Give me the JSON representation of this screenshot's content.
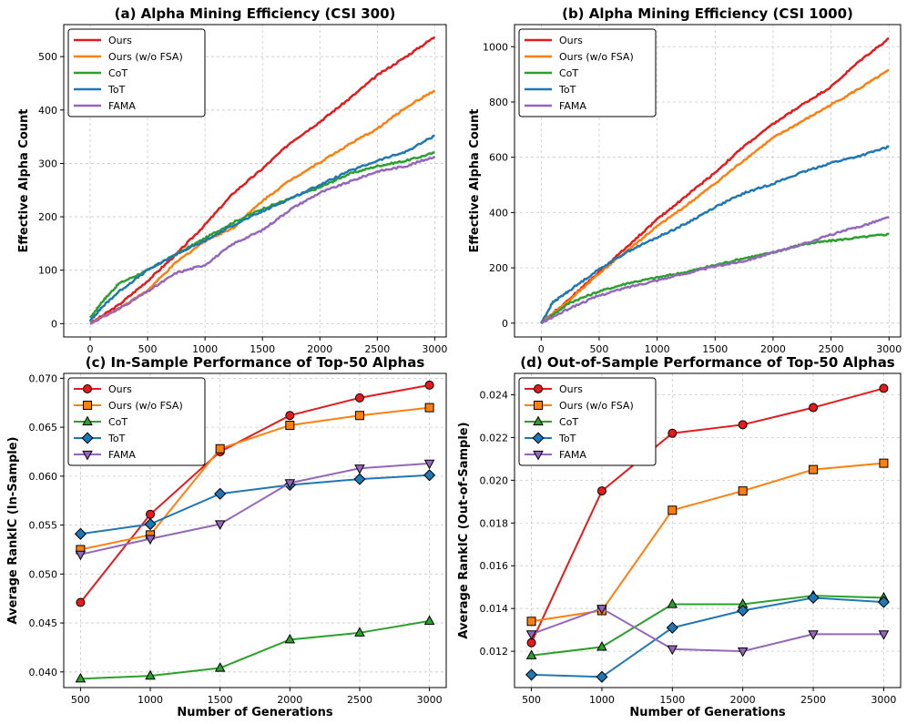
{
  "chart_data": [
    {
      "type": "line",
      "title": "(a) Alpha Mining Efficiency (CSI 300)",
      "xlabel": "",
      "ylabel": "Effective Alpha Count",
      "xlim": [
        -230,
        3100
      ],
      "ylim": [
        -25,
        560
      ],
      "xticks": [
        0,
        500,
        1000,
        1500,
        2000,
        2500,
        3000
      ],
      "yticks": [
        0,
        100,
        200,
        300,
        400,
        500
      ],
      "tick_labels_x": [
        "0",
        "500",
        "1000",
        "1500",
        "2000",
        "2500",
        "3000"
      ],
      "tick_labels_y": [
        "0",
        "100",
        "200",
        "300",
        "400",
        "500"
      ],
      "grid": true,
      "legend": "top-left",
      "series": [
        {
          "name": "Ours",
          "color": "#e41a1c",
          "marker": "none",
          "x": [
            0,
            250,
            500,
            750,
            1000,
            1250,
            1500,
            1750,
            2000,
            2250,
            2500,
            2750,
            3000
          ],
          "values": [
            0,
            35,
            80,
            130,
            185,
            245,
            290,
            340,
            378,
            420,
            465,
            500,
            537
          ]
        },
        {
          "name": "Ours (w/o FSA)",
          "color": "#ff7f0e",
          "marker": "none",
          "x": [
            0,
            250,
            500,
            750,
            1000,
            1250,
            1500,
            1750,
            2000,
            2250,
            2500,
            2750,
            3000
          ],
          "values": [
            0,
            28,
            62,
            115,
            155,
            180,
            230,
            270,
            302,
            335,
            365,
            405,
            437
          ]
        },
        {
          "name": "CoT",
          "color": "#2ca02c",
          "marker": "none",
          "x": [
            0,
            100,
            250,
            500,
            750,
            1000,
            1250,
            1500,
            1750,
            2000,
            2250,
            2500,
            2750,
            3000
          ],
          "values": [
            10,
            40,
            75,
            100,
            130,
            160,
            190,
            215,
            235,
            255,
            280,
            295,
            305,
            320
          ]
        },
        {
          "name": "ToT",
          "color": "#1f77b4",
          "marker": "none",
          "x": [
            0,
            100,
            250,
            500,
            750,
            1000,
            1250,
            1500,
            1750,
            2000,
            2250,
            2500,
            2750,
            3000
          ],
          "values": [
            5,
            30,
            60,
            100,
            130,
            155,
            185,
            210,
            235,
            260,
            285,
            305,
            322,
            352
          ]
        },
        {
          "name": "FAMA",
          "color": "#9467bd",
          "marker": "none",
          "x": [
            0,
            250,
            500,
            750,
            1000,
            1250,
            1500,
            1750,
            2000,
            2250,
            2500,
            2750,
            3000
          ],
          "values": [
            0,
            28,
            60,
            95,
            110,
            150,
            175,
            215,
            245,
            265,
            285,
            295,
            313
          ]
        }
      ]
    },
    {
      "type": "line",
      "title": "(b) Alpha Mining Efficiency (CSI 1000)",
      "xlabel": "",
      "ylabel": "Effective Alpha Count",
      "xlim": [
        -230,
        3100
      ],
      "ylim": [
        -50,
        1080
      ],
      "xticks": [
        0,
        500,
        1000,
        1500,
        2000,
        2500,
        3000
      ],
      "yticks": [
        0,
        200,
        400,
        600,
        800,
        1000
      ],
      "tick_labels_x": [
        "0",
        "500",
        "1000",
        "1500",
        "2000",
        "2500",
        "3000"
      ],
      "tick_labels_y": [
        "0",
        "200",
        "400",
        "600",
        "800",
        "1000"
      ],
      "grid": true,
      "legend": "top-left",
      "series": [
        {
          "name": "Ours",
          "color": "#e41a1c",
          "marker": "none",
          "x": [
            0,
            250,
            500,
            750,
            1000,
            1250,
            1500,
            1750,
            2000,
            2250,
            2500,
            2750,
            3000
          ],
          "values": [
            0,
            90,
            185,
            280,
            375,
            460,
            545,
            640,
            720,
            790,
            855,
            950,
            1030
          ]
        },
        {
          "name": "Ours (w/o FSA)",
          "color": "#ff7f0e",
          "marker": "none",
          "x": [
            0,
            250,
            500,
            750,
            1000,
            1250,
            1500,
            1750,
            2000,
            2250,
            2500,
            2750,
            3000
          ],
          "values": [
            0,
            85,
            180,
            265,
            350,
            425,
            505,
            590,
            670,
            730,
            790,
            850,
            915
          ]
        },
        {
          "name": "CoT",
          "color": "#2ca02c",
          "marker": "none",
          "x": [
            0,
            250,
            500,
            750,
            1000,
            1250,
            1500,
            1750,
            2000,
            2250,
            2500,
            2750,
            3000
          ],
          "values": [
            0,
            75,
            115,
            145,
            165,
            185,
            210,
            235,
            255,
            285,
            298,
            310,
            322
          ]
        },
        {
          "name": "ToT",
          "color": "#1f77b4",
          "marker": "none",
          "x": [
            0,
            100,
            250,
            500,
            750,
            1000,
            1250,
            1500,
            1750,
            2000,
            2250,
            2500,
            2750,
            3000
          ],
          "values": [
            0,
            75,
            120,
            195,
            260,
            310,
            360,
            420,
            470,
            505,
            545,
            580,
            605,
            638
          ]
        },
        {
          "name": "FAMA",
          "color": "#9467bd",
          "marker": "none",
          "x": [
            0,
            250,
            500,
            750,
            1000,
            1250,
            1500,
            1750,
            2000,
            2250,
            2500,
            2750,
            3000
          ],
          "values": [
            0,
            55,
            100,
            130,
            155,
            180,
            205,
            225,
            255,
            285,
            320,
            350,
            383
          ]
        }
      ]
    },
    {
      "type": "line",
      "title": "(c) In-Sample Performance of Top-50 Alphas",
      "xlabel": "Number of Generations",
      "ylabel": "Average RankIC (In-Sample)",
      "xlim": [
        380,
        3120
      ],
      "ylim": [
        0.0384,
        0.0705
      ],
      "xticks": [
        500,
        1000,
        1500,
        2000,
        2500,
        3000
      ],
      "yticks": [
        0.04,
        0.045,
        0.05,
        0.055,
        0.06,
        0.065,
        0.07
      ],
      "tick_labels_x": [
        "500",
        "1000",
        "1500",
        "2000",
        "2500",
        "3000"
      ],
      "tick_labels_y": [
        "0.040",
        "0.045",
        "0.050",
        "0.055",
        "0.060",
        "0.065",
        "0.070"
      ],
      "grid": true,
      "legend": "top-left",
      "categories": [
        500,
        1000,
        1500,
        2000,
        2500,
        3000
      ],
      "series": [
        {
          "name": "Ours",
          "color": "#e41a1c",
          "marker": "o",
          "x": [
            500,
            1000,
            1500,
            2000,
            2500,
            3000
          ],
          "values": [
            0.0471,
            0.0561,
            0.0625,
            0.0662,
            0.068,
            0.0693
          ]
        },
        {
          "name": "Ours (w/o FSA)",
          "color": "#ff7f0e",
          "marker": "s",
          "x": [
            500,
            1000,
            1500,
            2000,
            2500,
            3000
          ],
          "values": [
            0.0525,
            0.054,
            0.0628,
            0.0652,
            0.0662,
            0.067
          ]
        },
        {
          "name": "CoT",
          "color": "#2ca02c",
          "marker": "^",
          "x": [
            500,
            1000,
            1500,
            2000,
            2500,
            3000
          ],
          "values": [
            0.0393,
            0.0396,
            0.0404,
            0.0433,
            0.044,
            0.0452
          ]
        },
        {
          "name": "ToT",
          "color": "#1f77b4",
          "marker": "D",
          "x": [
            500,
            1000,
            1500,
            2000,
            2500,
            3000
          ],
          "values": [
            0.0541,
            0.0551,
            0.0582,
            0.0591,
            0.0597,
            0.0601
          ]
        },
        {
          "name": "FAMA",
          "color": "#9467bd",
          "marker": "v",
          "x": [
            500,
            1000,
            1500,
            2000,
            2500,
            3000
          ],
          "values": [
            0.052,
            0.0536,
            0.0551,
            0.0593,
            0.0608,
            0.0613
          ]
        }
      ]
    },
    {
      "type": "line",
      "title": "(d) Out-of-Sample Performance of Top-50 Alphas",
      "xlabel": "Number of Generations",
      "ylabel": "Average RankIC (Out-of-Sample)",
      "xlim": [
        380,
        3120
      ],
      "ylim": [
        0.0103,
        0.025
      ],
      "xticks": [
        500,
        1000,
        1500,
        2000,
        2500,
        3000
      ],
      "yticks": [
        0.012,
        0.014,
        0.016,
        0.018,
        0.02,
        0.022,
        0.024
      ],
      "tick_labels_x": [
        "500",
        "1000",
        "1500",
        "2000",
        "2500",
        "3000"
      ],
      "tick_labels_y": [
        "0.012",
        "0.014",
        "0.016",
        "0.018",
        "0.020",
        "0.022",
        "0.024"
      ],
      "grid": true,
      "legend": "top-left",
      "categories": [
        500,
        1000,
        1500,
        2000,
        2500,
        3000
      ],
      "series": [
        {
          "name": "Ours",
          "color": "#e41a1c",
          "marker": "o",
          "x": [
            500,
            1000,
            1500,
            2000,
            2500,
            3000
          ],
          "values": [
            0.0124,
            0.0195,
            0.0222,
            0.0226,
            0.0234,
            0.0243
          ]
        },
        {
          "name": "Ours (w/o FSA)",
          "color": "#ff7f0e",
          "marker": "s",
          "x": [
            500,
            1000,
            1500,
            2000,
            2500,
            3000
          ],
          "values": [
            0.0134,
            0.0139,
            0.0186,
            0.0195,
            0.0205,
            0.0208
          ]
        },
        {
          "name": "CoT",
          "color": "#2ca02c",
          "marker": "^",
          "x": [
            500,
            1000,
            1500,
            2000,
            2500,
            3000
          ],
          "values": [
            0.0118,
            0.0122,
            0.0142,
            0.0142,
            0.0146,
            0.0145
          ]
        },
        {
          "name": "ToT",
          "color": "#1f77b4",
          "marker": "D",
          "x": [
            500,
            1000,
            1500,
            2000,
            2500,
            3000
          ],
          "values": [
            0.0109,
            0.0108,
            0.0131,
            0.0139,
            0.0145,
            0.0143
          ]
        },
        {
          "name": "FAMA",
          "color": "#9467bd",
          "marker": "v",
          "x": [
            500,
            1000,
            1500,
            2000,
            2500,
            3000
          ],
          "values": [
            0.0128,
            0.014,
            0.0121,
            0.012,
            0.0128,
            0.0128
          ]
        }
      ]
    }
  ]
}
